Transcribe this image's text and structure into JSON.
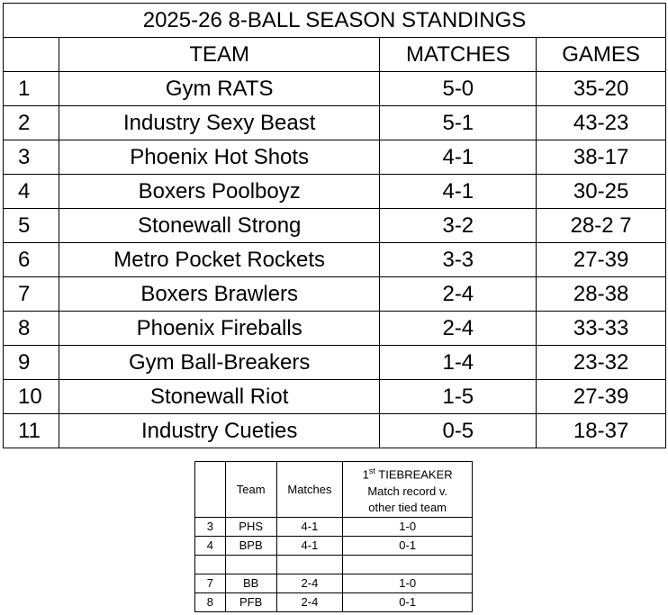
{
  "standings": {
    "title": "2025-26 8-BALL SEASON STANDINGS",
    "columns": [
      "TEAM",
      "MATCHES",
      "GAMES"
    ],
    "rows": [
      [
        "1",
        "Gym RATS",
        "5-0",
        "35-20"
      ],
      [
        "2",
        "Industry Sexy Beast",
        "5-1",
        "43-23"
      ],
      [
        "3",
        "Phoenix Hot Shots",
        "4-1",
        "38-17"
      ],
      [
        "4",
        "Boxers Poolboyz",
        "4-1",
        "30-25"
      ],
      [
        "5",
        "Stonewall Strong",
        "3-2",
        "28-2 7"
      ],
      [
        "6",
        "Metro Pocket Rockets",
        "3-3",
        "27-39"
      ],
      [
        "7",
        "Boxers Brawlers",
        "2-4",
        "28-38"
      ],
      [
        "8",
        "Phoenix Fireballs",
        "2-4",
        "33-33"
      ],
      [
        "9",
        "Gym Ball-Breakers",
        "1-4",
        "23-32"
      ],
      [
        "10",
        "Stonewall Riot",
        "1-5",
        "27-39"
      ],
      [
        "11",
        "Industry Cueties",
        "0-5",
        "18-37"
      ]
    ]
  },
  "tiebreaker": {
    "columns": [
      "Team",
      "Matches"
    ],
    "tiebreaker_header": {
      "ordinal": "1",
      "suffix": "st",
      "rest": "TIEBREAKER",
      "lines": [
        "Match record v.",
        "other tied team"
      ]
    },
    "groups": [
      [
        [
          "3",
          "PHS",
          "4-1",
          "1-0"
        ],
        [
          "4",
          "BPB",
          "4-1",
          "0-1"
        ]
      ],
      [
        [
          "7",
          "BB",
          "2-4",
          "1-0"
        ],
        [
          "8",
          "PFB",
          "2-4",
          "0-1"
        ]
      ]
    ]
  }
}
